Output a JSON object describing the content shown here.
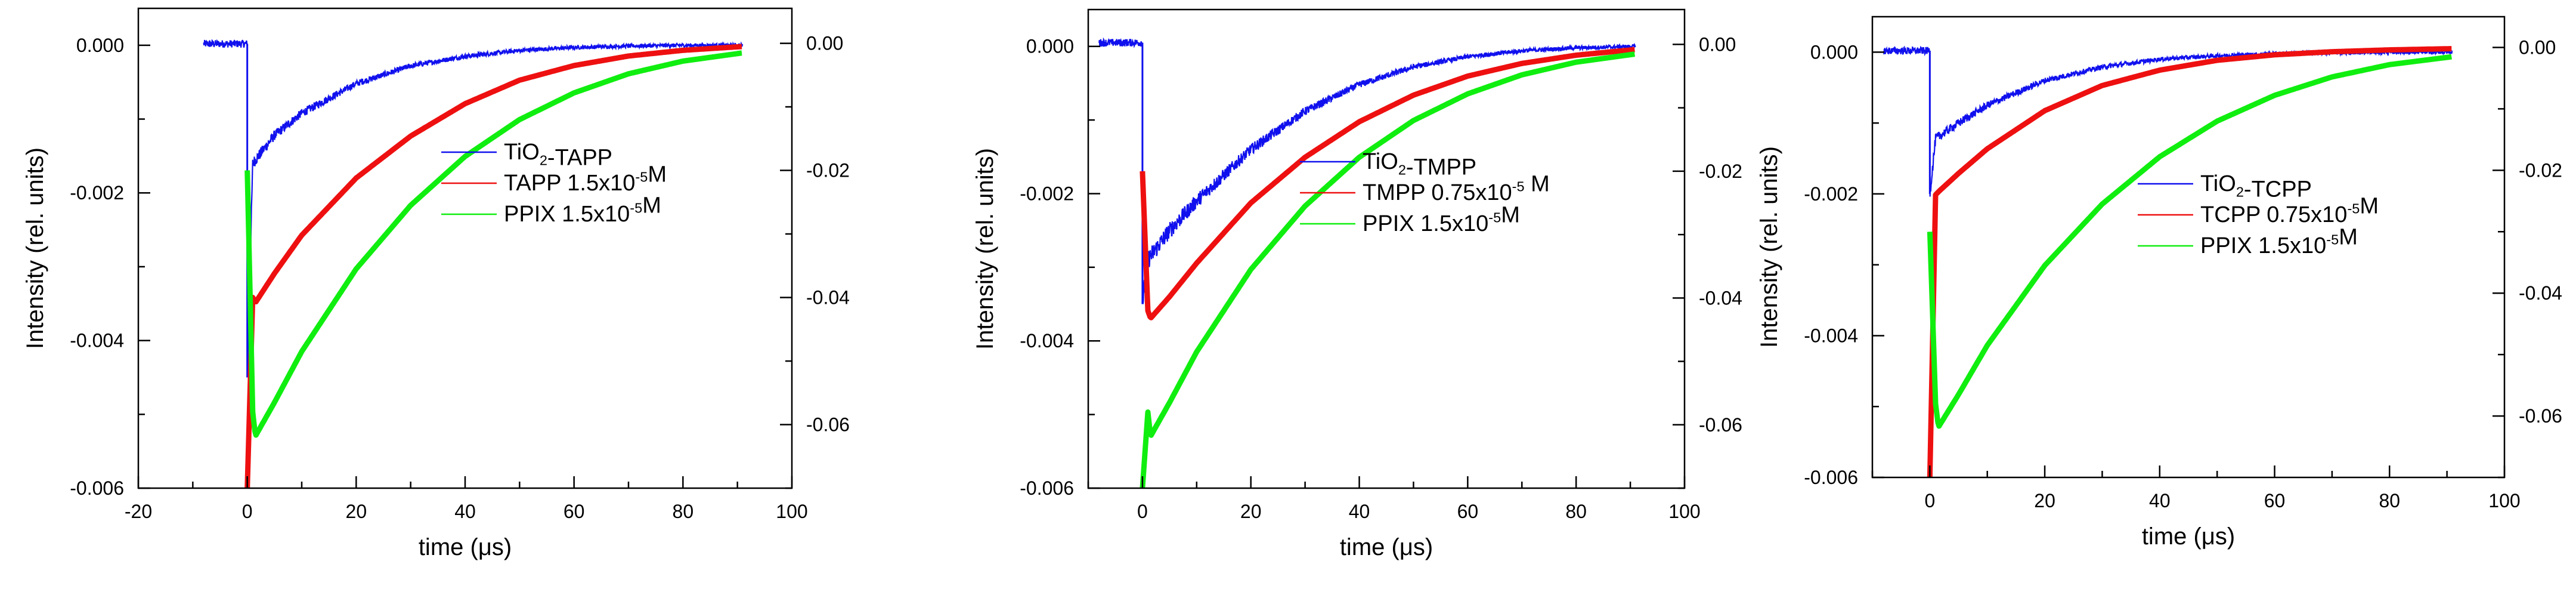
{
  "colors": {
    "blue": "#1010ee",
    "red": "#ee1010",
    "green": "#10ee10",
    "axis": "#000000",
    "background": "#ffffff"
  },
  "chart_data": [
    {
      "type": "line",
      "xlabel": "time (μs)",
      "ylabel": "Intensity (rel. units)",
      "xlim": [
        -20,
        100
      ],
      "ylim": [
        -0.006,
        0.0005
      ],
      "y2lim": [
        -0.07,
        0.0055
      ],
      "xticks": [
        -20,
        0,
        20,
        40,
        60,
        80,
        100
      ],
      "yticks": [
        0.0,
        -0.002,
        -0.004,
        -0.006
      ],
      "y2ticks": [
        0.0,
        -0.02,
        -0.04,
        -0.06
      ],
      "legend": "center-right",
      "grid": false,
      "series": [
        {
          "name": "TiO₂-TAPP",
          "axis": "left",
          "color": "#1010ee",
          "noisy": true,
          "x": [
            -8,
            -0.2,
            0,
            1,
            5,
            10,
            20,
            30,
            40,
            50,
            60,
            70,
            80,
            91
          ],
          "y": [
            2e-05,
            2e-05,
            -0.0045,
            -0.0016,
            -0.00122,
            -0.00092,
            -0.00052,
            -0.00028,
            -0.00015,
            -7e-05,
            -3e-05,
            -1e-05,
            0.0,
            0.0
          ]
        },
        {
          "name": "TAPP 1.5x10⁻⁵M",
          "axis": "right",
          "color": "#ee1010",
          "noisy": false,
          "x": [
            0,
            1,
            1.5,
            5,
            10,
            20,
            30,
            40,
            50,
            60,
            70,
            80,
            91
          ],
          "y": [
            -0.07,
            -0.04,
            -0.0408,
            -0.0362,
            -0.0302,
            -0.0212,
            -0.0146,
            -0.0095,
            -0.0058,
            -0.0035,
            -0.002,
            -0.0011,
            -0.0005
          ]
        },
        {
          "name": "PPIX 1.5x10⁻⁵M",
          "axis": "right",
          "color": "#10ee10",
          "noisy": false,
          "x": [
            0,
            1,
            1.5,
            5,
            10,
            20,
            30,
            40,
            50,
            60,
            70,
            80,
            91
          ],
          "y": [
            -0.02,
            -0.058,
            -0.0618,
            -0.0565,
            -0.0485,
            -0.0355,
            -0.0255,
            -0.0178,
            -0.012,
            -0.0078,
            -0.0048,
            -0.0028,
            -0.0015
          ]
        }
      ]
    },
    {
      "type": "line",
      "xlabel": "time (μs)",
      "ylabel": "Intensity (rel. units)",
      "xlim": [
        -10,
        100
      ],
      "ylim": [
        -0.006,
        0.0005
      ],
      "y2lim": [
        -0.07,
        0.0055
      ],
      "xticks": [
        0,
        20,
        40,
        60,
        80,
        100
      ],
      "yticks": [
        0.0,
        -0.002,
        -0.004,
        -0.006
      ],
      "y2ticks": [
        0.0,
        -0.02,
        -0.04,
        -0.06
      ],
      "legend": "center-right",
      "grid": false,
      "series": [
        {
          "name": "TiO₂-TMPP",
          "axis": "left",
          "color": "#1010ee",
          "noisy": true,
          "x": [
            -8,
            -0.2,
            0,
            1,
            5,
            10,
            20,
            30,
            40,
            50,
            60,
            70,
            80,
            91
          ],
          "y": [
            5e-05,
            5e-05,
            -0.0035,
            -0.0029,
            -0.0025,
            -0.0021,
            -0.0014,
            -0.00088,
            -0.00052,
            -0.00028,
            -0.00014,
            -6e-05,
            -2e-05,
            0.0
          ]
        },
        {
          "name": "TMPP 0.75x10⁻⁵ M",
          "axis": "right",
          "color": "#ee1010",
          "noisy": false,
          "x": [
            0,
            1,
            1.5,
            5,
            10,
            20,
            30,
            40,
            50,
            60,
            70,
            80,
            91
          ],
          "y": [
            -0.02,
            -0.042,
            -0.0432,
            -0.0398,
            -0.0345,
            -0.025,
            -0.0178,
            -0.0122,
            -0.008,
            -0.005,
            -0.003,
            -0.0017,
            -0.0008
          ]
        },
        {
          "name": "PPIX 1.5x10⁻⁵M",
          "axis": "right",
          "color": "#10ee10",
          "noisy": false,
          "x": [
            0,
            1,
            1.5,
            5,
            10,
            20,
            30,
            40,
            50,
            60,
            70,
            80,
            91
          ],
          "y": [
            -0.07,
            -0.058,
            -0.0618,
            -0.0565,
            -0.0485,
            -0.0355,
            -0.0255,
            -0.0178,
            -0.012,
            -0.0078,
            -0.0048,
            -0.0028,
            -0.0015
          ]
        }
      ]
    },
    {
      "type": "line",
      "xlabel": "time (μs)",
      "ylabel": "Intensity (rel. units)",
      "xlim": [
        -10,
        100
      ],
      "ylim": [
        -0.006,
        0.0005
      ],
      "y2lim": [
        -0.07,
        0.005
      ],
      "xticks": [
        0,
        20,
        40,
        60,
        80,
        100
      ],
      "yticks": [
        0.0,
        -0.002,
        -0.004,
        -0.006
      ],
      "y2ticks": [
        0.0,
        -0.02,
        -0.04,
        -0.06
      ],
      "legend": "top-right",
      "grid": false,
      "series": [
        {
          "name": "TiO₂-TCPP",
          "axis": "left",
          "color": "#1010ee",
          "noisy": true,
          "x": [
            -8,
            -0.2,
            0,
            1,
            5,
            10,
            20,
            30,
            40,
            50,
            60,
            70,
            80,
            91
          ],
          "y": [
            2e-05,
            2e-05,
            -0.002,
            -0.00122,
            -0.001,
            -0.00075,
            -0.0004,
            -0.00021,
            -0.0001,
            -5e-05,
            -2e-05,
            -1e-05,
            0.0,
            0.0
          ]
        },
        {
          "name": "TCPP 0.75x10⁻⁵M",
          "axis": "right",
          "color": "#ee1010",
          "noisy": false,
          "x": [
            0,
            1,
            1.5,
            5,
            10,
            20,
            30,
            40,
            50,
            60,
            70,
            80,
            91
          ],
          "y": [
            -0.07,
            -0.024,
            -0.0235,
            -0.0205,
            -0.0165,
            -0.0103,
            -0.0062,
            -0.0037,
            -0.0021,
            -0.0012,
            -0.0007,
            -0.0004,
            -0.0002
          ]
        },
        {
          "name": "PPIX 1.5x10⁻⁵M",
          "axis": "right",
          "color": "#10ee10",
          "noisy": false,
          "x": [
            0,
            1,
            1.5,
            5,
            10,
            20,
            30,
            40,
            50,
            60,
            70,
            80,
            91
          ],
          "y": [
            -0.03,
            -0.058,
            -0.0618,
            -0.0565,
            -0.0485,
            -0.0355,
            -0.0255,
            -0.0178,
            -0.012,
            -0.0078,
            -0.0048,
            -0.0028,
            -0.0015
          ]
        }
      ]
    }
  ]
}
